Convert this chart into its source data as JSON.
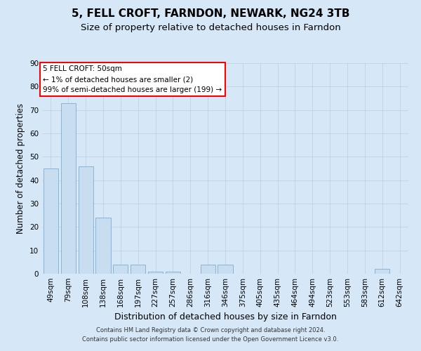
{
  "title": "5, FELL CROFT, FARNDON, NEWARK, NG24 3TB",
  "subtitle": "Size of property relative to detached houses in Farndon",
  "xlabel": "Distribution of detached houses by size in Farndon",
  "ylabel": "Number of detached properties",
  "footer_line1": "Contains HM Land Registry data © Crown copyright and database right 2024.",
  "footer_line2": "Contains public sector information licensed under the Open Government Licence v3.0.",
  "annotation_line1": "5 FELL CROFT: 50sqm",
  "annotation_line2": "← 1% of detached houses are smaller (2)",
  "annotation_line3": "99% of semi-detached houses are larger (199) →",
  "categories": [
    "49sqm",
    "79sqm",
    "108sqm",
    "138sqm",
    "168sqm",
    "197sqm",
    "227sqm",
    "257sqm",
    "286sqm",
    "316sqm",
    "346sqm",
    "375sqm",
    "405sqm",
    "435sqm",
    "464sqm",
    "494sqm",
    "523sqm",
    "553sqm",
    "583sqm",
    "612sqm",
    "642sqm"
  ],
  "values": [
    45,
    73,
    46,
    24,
    4,
    4,
    1,
    1,
    0,
    4,
    4,
    0,
    0,
    0,
    0,
    0,
    0,
    0,
    0,
    2,
    0
  ],
  "bar_color": "#c9ddf0",
  "bar_edge_color": "#7aaed6",
  "background_color": "#d6e8f7",
  "plot_background_color": "#d6e8f7",
  "grid_color": "#b8cfe0",
  "ylim": [
    0,
    90
  ],
  "yticks": [
    0,
    10,
    20,
    30,
    40,
    50,
    60,
    70,
    80,
    90
  ],
  "title_fontsize": 11,
  "subtitle_fontsize": 9.5,
  "xlabel_fontsize": 9,
  "ylabel_fontsize": 8.5,
  "tick_fontsize": 7.5,
  "annotation_fontsize": 7.5,
  "footer_fontsize": 6
}
